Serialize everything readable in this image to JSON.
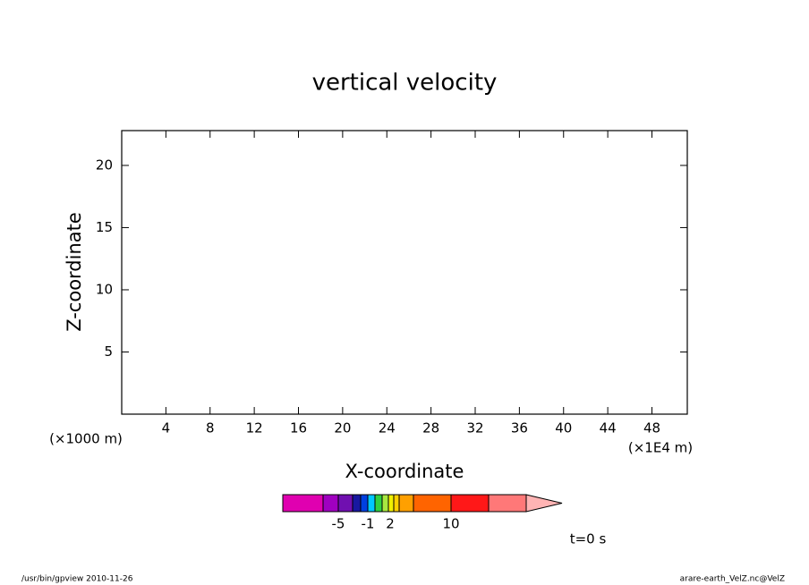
{
  "chart_data": {
    "type": "contour",
    "title": "vertical velocity",
    "xlabel": "X-coordinate",
    "ylabel": "Z-coordinate",
    "xunit": "(×1E4 m)",
    "yunit": "(×1000 m)",
    "xlim": [
      0,
      51.2
    ],
    "xticks": [
      4,
      8,
      12,
      16,
      20,
      24,
      28,
      32,
      36,
      40,
      44,
      48
    ],
    "ylim": [
      0,
      22.8
    ],
    "yticks": [
      5,
      10,
      15,
      20
    ],
    "colorbar": {
      "colors": [
        "#e000b0",
        "#a000c0",
        "#7010b0",
        "#1818a0",
        "#0040e0",
        "#00c8ff",
        "#30d040",
        "#a8e840",
        "#f0f000",
        "#ffd000",
        "#ffa000",
        "#ff6400",
        "#ff1818",
        "#ff7878",
        "#ffb4b4"
      ],
      "ticks": [
        -5,
        -1,
        2,
        10
      ]
    },
    "time_label": "t=0 s",
    "footer_left": "/usr/bin/gpview   2010-11-26",
    "footer_right": "arare-earth_VelZ.nc@VelZ"
  }
}
